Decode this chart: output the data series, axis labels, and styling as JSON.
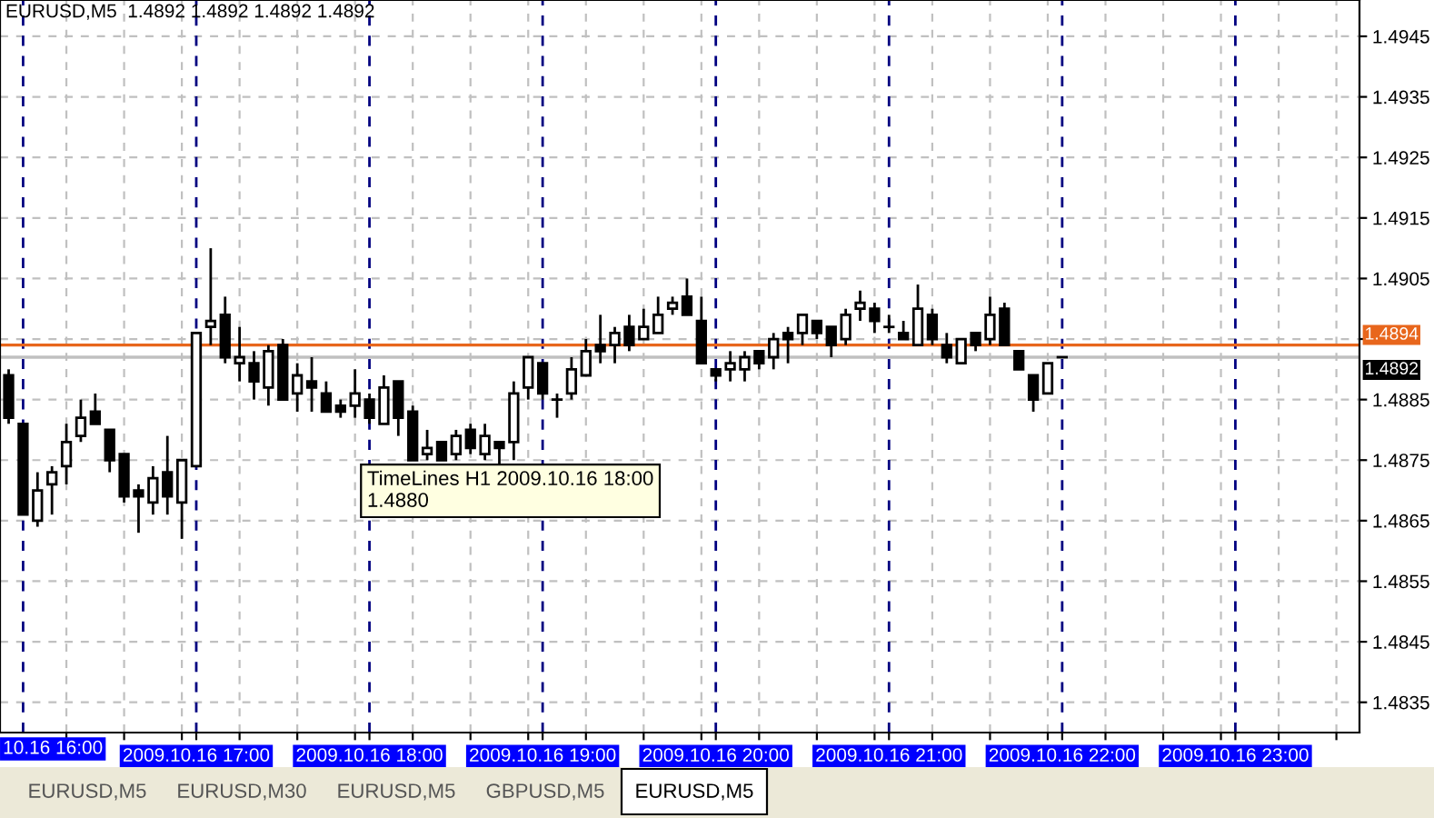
{
  "chart_data": {
    "type": "candlestick",
    "title": "EURUSD,M5  1.4892 1.4892 1.4892 1.4892",
    "x": [
      "2009-10-16T15:55",
      "2009-10-16T16:00",
      "2009-10-16T16:05",
      "2009-10-16T16:10",
      "2009-10-16T16:15",
      "2009-10-16T16:20",
      "2009-10-16T16:25",
      "2009-10-16T16:30",
      "2009-10-16T16:35",
      "2009-10-16T16:40",
      "2009-10-16T16:45",
      "2009-10-16T16:50",
      "2009-10-16T16:55",
      "2009-10-16T17:00",
      "2009-10-16T17:05",
      "2009-10-16T17:10",
      "2009-10-16T17:15",
      "2009-10-16T17:20",
      "2009-10-16T17:25",
      "2009-10-16T17:30",
      "2009-10-16T17:35",
      "2009-10-16T17:40",
      "2009-10-16T17:45",
      "2009-10-16T17:50",
      "2009-10-16T17:55",
      "2009-10-16T18:00",
      "2009-10-16T18:05",
      "2009-10-16T18:10",
      "2009-10-16T18:15",
      "2009-10-16T18:20",
      "2009-10-16T18:25",
      "2009-10-16T18:30",
      "2009-10-16T18:35",
      "2009-10-16T18:40",
      "2009-10-16T18:45",
      "2009-10-16T18:50",
      "2009-10-16T18:55",
      "2009-10-16T19:00",
      "2009-10-16T19:05",
      "2009-10-16T19:10",
      "2009-10-16T19:15",
      "2009-10-16T19:20",
      "2009-10-16T19:25",
      "2009-10-16T19:30",
      "2009-10-16T19:35",
      "2009-10-16T19:40",
      "2009-10-16T19:45",
      "2009-10-16T19:50",
      "2009-10-16T19:55",
      "2009-10-16T20:00",
      "2009-10-16T20:05",
      "2009-10-16T20:10",
      "2009-10-16T20:15",
      "2009-10-16T20:20",
      "2009-10-16T20:25",
      "2009-10-16T20:30",
      "2009-10-16T20:35",
      "2009-10-16T20:40",
      "2009-10-16T20:45",
      "2009-10-16T20:50",
      "2009-10-16T20:55",
      "2009-10-16T21:00",
      "2009-10-16T21:05",
      "2009-10-16T21:10",
      "2009-10-16T21:15",
      "2009-10-16T21:20",
      "2009-10-16T21:25",
      "2009-10-16T21:30",
      "2009-10-16T21:35",
      "2009-10-16T21:40",
      "2009-10-16T21:45",
      "2009-10-16T21:50",
      "2009-10-16T21:55",
      "2009-10-16T22:00"
    ],
    "ohlc": [
      [
        1.4889,
        1.489,
        1.4881,
        1.4882
      ],
      [
        1.4881,
        1.4881,
        1.4866,
        1.4866
      ],
      [
        1.4865,
        1.4873,
        1.4864,
        1.487
      ],
      [
        1.4871,
        1.4874,
        1.4866,
        1.4873
      ],
      [
        1.4874,
        1.4881,
        1.4871,
        1.4878
      ],
      [
        1.4879,
        1.4885,
        1.4878,
        1.4882
      ],
      [
        1.4883,
        1.4886,
        1.4881,
        1.4881
      ],
      [
        1.488,
        1.488,
        1.4873,
        1.4875
      ],
      [
        1.4876,
        1.4876,
        1.4868,
        1.4869
      ],
      [
        1.487,
        1.4871,
        1.4863,
        1.4869
      ],
      [
        1.4868,
        1.4874,
        1.4866,
        1.4872
      ],
      [
        1.4873,
        1.4879,
        1.4866,
        1.4869
      ],
      [
        1.4868,
        1.4875,
        1.4862,
        1.4875
      ],
      [
        1.4874,
        1.4896,
        1.4874,
        1.4896
      ],
      [
        1.4897,
        1.491,
        1.4894,
        1.4898
      ],
      [
        1.4899,
        1.4902,
        1.4891,
        1.4892
      ],
      [
        1.4891,
        1.4897,
        1.4888,
        1.4892
      ],
      [
        1.4891,
        1.4893,
        1.4885,
        1.4888
      ],
      [
        1.4887,
        1.4894,
        1.4884,
        1.4893
      ],
      [
        1.4894,
        1.4895,
        1.4885,
        1.4885
      ],
      [
        1.4886,
        1.4891,
        1.4883,
        1.4889
      ],
      [
        1.4888,
        1.4892,
        1.4883,
        1.4887
      ],
      [
        1.4886,
        1.4888,
        1.4883,
        1.4883
      ],
      [
        1.4884,
        1.4885,
        1.4882,
        1.4883
      ],
      [
        1.4884,
        1.489,
        1.4882,
        1.4886
      ],
      [
        1.4885,
        1.4886,
        1.4881,
        1.4882
      ],
      [
        1.4881,
        1.4889,
        1.4881,
        1.4887
      ],
      [
        1.4888,
        1.4888,
        1.4879,
        1.4882
      ],
      [
        1.4883,
        1.4884,
        1.4875,
        1.4875
      ],
      [
        1.4876,
        1.488,
        1.4875,
        1.4877
      ],
      [
        1.4878,
        1.4878,
        1.4875,
        1.4875
      ],
      [
        1.4876,
        1.488,
        1.4875,
        1.4879
      ],
      [
        1.488,
        1.4881,
        1.4876,
        1.4877
      ],
      [
        1.4876,
        1.4881,
        1.4875,
        1.4879
      ],
      [
        1.4878,
        1.4878,
        1.4874,
        1.4877
      ],
      [
        1.4878,
        1.4888,
        1.4875,
        1.4886
      ],
      [
        1.4887,
        1.4892,
        1.4885,
        1.4892
      ],
      [
        1.4891,
        1.4891,
        1.4885,
        1.4886
      ],
      [
        1.4885,
        1.4886,
        1.4882,
        1.4885
      ],
      [
        1.4886,
        1.4892,
        1.4885,
        1.489
      ],
      [
        1.4889,
        1.4895,
        1.4889,
        1.4893
      ],
      [
        1.4894,
        1.4899,
        1.4891,
        1.4893
      ],
      [
        1.4894,
        1.4897,
        1.4891,
        1.4896
      ],
      [
        1.4897,
        1.4899,
        1.4893,
        1.4894
      ],
      [
        1.4895,
        1.49,
        1.4895,
        1.4897
      ],
      [
        1.4896,
        1.4902,
        1.4896,
        1.4899
      ],
      [
        1.49,
        1.4902,
        1.4899,
        1.4901
      ],
      [
        1.4902,
        1.4905,
        1.4899,
        1.4899
      ],
      [
        1.4898,
        1.4902,
        1.4891,
        1.4891
      ],
      [
        1.489,
        1.489,
        1.4888,
        1.4889
      ],
      [
        1.489,
        1.4893,
        1.4888,
        1.4891
      ],
      [
        1.489,
        1.4893,
        1.4888,
        1.4892
      ],
      [
        1.4893,
        1.4893,
        1.489,
        1.4891
      ],
      [
        1.4892,
        1.4896,
        1.489,
        1.4895
      ],
      [
        1.4896,
        1.4897,
        1.4891,
        1.4895
      ],
      [
        1.4896,
        1.4899,
        1.4894,
        1.4899
      ],
      [
        1.4898,
        1.4898,
        1.4895,
        1.4896
      ],
      [
        1.4897,
        1.4897,
        1.4892,
        1.4894
      ],
      [
        1.4895,
        1.49,
        1.4894,
        1.4899
      ],
      [
        1.49,
        1.4903,
        1.4898,
        1.4901
      ],
      [
        1.49,
        1.4901,
        1.4896,
        1.4898
      ],
      [
        1.4897,
        1.4899,
        1.4896,
        1.4897
      ],
      [
        1.4896,
        1.4898,
        1.4895,
        1.4895
      ],
      [
        1.4894,
        1.4904,
        1.4894,
        1.49
      ],
      [
        1.4899,
        1.49,
        1.4894,
        1.4895
      ],
      [
        1.4894,
        1.4896,
        1.4891,
        1.4892
      ],
      [
        1.4891,
        1.4895,
        1.4891,
        1.4895
      ],
      [
        1.4896,
        1.4896,
        1.4893,
        1.4894
      ],
      [
        1.4895,
        1.4902,
        1.4894,
        1.4899
      ],
      [
        1.49,
        1.4901,
        1.4894,
        1.4894
      ],
      [
        1.4893,
        1.4893,
        1.489,
        1.489
      ],
      [
        1.4889,
        1.4889,
        1.4883,
        1.4885
      ],
      [
        1.4886,
        1.4891,
        1.4886,
        1.4891
      ],
      [
        1.4892,
        1.4892,
        1.4892,
        1.4892
      ]
    ],
    "xlim": [
      "2009-10-16T15:52",
      "2009-10-16T23:43"
    ],
    "xticks": [
      {
        "value": "2009-10-16T16:15",
        "label": null
      },
      {
        "value": "2009-10-16T16:35",
        "label": null
      },
      {
        "value": "2009-10-16T16:55",
        "label": null
      },
      {
        "value": "2009-10-16T17:00",
        "label": "2009.10.16 17:00"
      },
      {
        "value": "2009-10-16T17:15",
        "label": null
      },
      {
        "value": "2009-10-16T17:35",
        "label": null
      },
      {
        "value": "2009-10-16T17:55",
        "label": null
      },
      {
        "value": "2009-10-16T18:00",
        "label": "2009.10.16 18:00"
      },
      {
        "value": "2009-10-16T18:15",
        "label": null
      },
      {
        "value": "2009-10-16T18:35",
        "label": null
      },
      {
        "value": "2009-10-16T18:55",
        "label": null
      },
      {
        "value": "2009-10-16T19:00",
        "label": "2009.10.16 19:00"
      },
      {
        "value": "2009-10-16T19:15",
        "label": null
      },
      {
        "value": "2009-10-16T19:35",
        "label": null
      },
      {
        "value": "2009-10-16T19:55",
        "label": null
      },
      {
        "value": "2009-10-16T20:00",
        "label": "2009.10.16 20:00"
      },
      {
        "value": "2009-10-16T20:15",
        "label": null
      },
      {
        "value": "2009-10-16T20:35",
        "label": null
      },
      {
        "value": "2009-10-16T20:55",
        "label": null
      },
      {
        "value": "2009-10-16T21:00",
        "label": "2009.10.16 21:00"
      },
      {
        "value": "2009-10-16T21:15",
        "label": null
      },
      {
        "value": "2009-10-16T21:35",
        "label": null
      },
      {
        "value": "2009-10-16T21:55",
        "label": null
      },
      {
        "value": "2009-10-16T22:00",
        "label": "2009.10.16 22:00"
      },
      {
        "value": "2009-10-16T22:15",
        "label": null
      },
      {
        "value": "2009-10-16T22:35",
        "label": null
      },
      {
        "value": "2009-10-16T22:55",
        "label": null
      },
      {
        "value": "2009-10-16T23:00",
        "label": "2009.10.16 23:00"
      },
      {
        "value": "2009-10-16T23:15",
        "label": null
      },
      {
        "value": "2009-10-16T23:35",
        "label": null
      }
    ],
    "ylim": [
      1.483,
      1.4951
    ],
    "yticks": [
      1.4835,
      1.4845,
      1.4855,
      1.4865,
      1.4875,
      1.4885,
      {
        "value": 1.4895,
        "label": null
      },
      1.4905,
      1.4915,
      1.4925,
      1.4935,
      1.4945
    ],
    "grid": true,
    "ref_lines": [
      {
        "axis": "x",
        "value": "2009-10-16T16:00",
        "label": "10.16 16:00",
        "color": "#000080",
        "line_style": "dashed"
      },
      {
        "axis": "y",
        "value": 1.4894,
        "label": "1.4894",
        "color": "#e8661c",
        "line_style": "solid"
      },
      {
        "axis": "y",
        "value": 1.4892,
        "label": "1.4892",
        "color": "#c0c0c0",
        "line_style": "solid"
      }
    ],
    "annotations": [
      "TimeLines H1 2009.10.16 18:00\n1.4880",
      "EURUSD,M5",
      "EURUSD,M30",
      "EURUSD,M5",
      "GBPUSD,M5",
      "EURUSD,M5"
    ]
  }
}
